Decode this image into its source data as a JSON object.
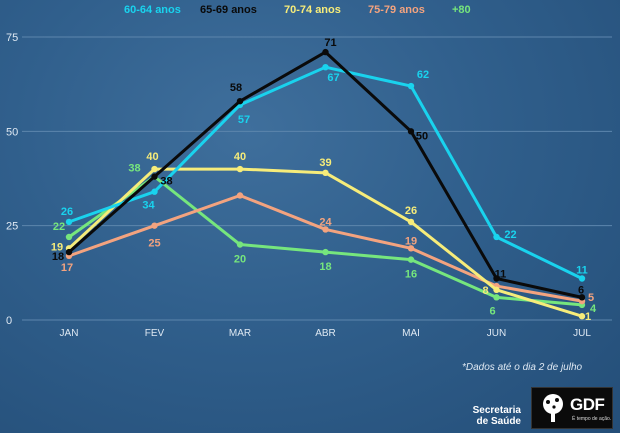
{
  "chart_data": {
    "type": "line",
    "categories": [
      "JAN",
      "FEV",
      "MAR",
      "ABR",
      "MAI",
      "JUN",
      "JUL"
    ],
    "ylim": [
      0,
      75
    ],
    "yticks": [
      "0",
      "25",
      "50",
      "75"
    ],
    "grid": true,
    "legend_position": "top",
    "series": [
      {
        "name": "60-64 anos",
        "color": "#19d3ee",
        "values": [
          26,
          34,
          57,
          67,
          62,
          22,
          11
        ],
        "labels": [
          "26",
          "34",
          "57",
          "67",
          "62",
          "22",
          "11"
        ]
      },
      {
        "name": "65-69 anos",
        "color": "#0a0a0a",
        "values": [
          18,
          38,
          58,
          71,
          50,
          11,
          6
        ],
        "labels": [
          "18",
          "38",
          "58",
          "71",
          "50",
          "11",
          "6"
        ]
      },
      {
        "name": "70-74 anos",
        "color": "#f6ec7a",
        "values": [
          19,
          40,
          40,
          39,
          26,
          8,
          1
        ],
        "labels": [
          "19",
          "40",
          "40",
          "39",
          "26",
          "8",
          "1"
        ]
      },
      {
        "name": "75-79 anos",
        "color": "#f3a37f",
        "values": [
          17,
          25,
          33,
          24,
          19,
          9,
          5
        ],
        "labels": [
          "17",
          "25",
          "",
          "24",
          "19",
          "",
          "5"
        ]
      },
      {
        "name": "+80",
        "color": "#76e67d",
        "values": [
          22,
          38,
          20,
          18,
          16,
          6,
          4
        ],
        "labels": [
          "22",
          "38",
          "20",
          "18",
          "16",
          "6",
          "4"
        ]
      }
    ]
  },
  "note": "*Dados até o dia 2 de julho",
  "footer": {
    "secretaria": "Secretaria de Saúde",
    "logo_text": "GDF",
    "logo_tagline": "É tempo de ação."
  }
}
